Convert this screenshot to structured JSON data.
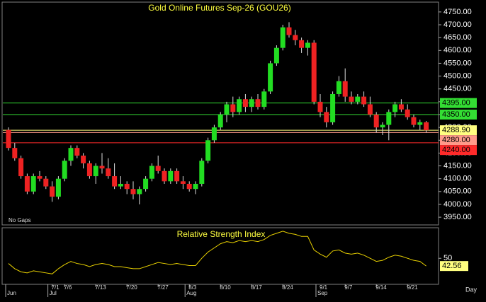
{
  "chart_data": [
    {
      "type": "candlestick",
      "title": "Gold Online Futures Sep-26 (GOU26)",
      "note": "No Gaps",
      "x_axis_label": "Day",
      "categories": [
        null,
        null,
        null,
        null,
        null,
        null,
        null,
        "7/1",
        null,
        "7/6",
        null,
        null,
        null,
        null,
        "7/13",
        null,
        null,
        null,
        null,
        "7/20",
        null,
        null,
        null,
        null,
        "7/27",
        null,
        null,
        null,
        null,
        "8/3",
        null,
        null,
        null,
        null,
        "8/10",
        null,
        null,
        null,
        null,
        "8/17",
        null,
        null,
        null,
        null,
        "8/24",
        null,
        null,
        null,
        null,
        null,
        null,
        null,
        null,
        null,
        "9/7",
        null,
        null,
        null,
        null,
        "9/14",
        null,
        null,
        null,
        null,
        "9/21",
        null,
        null,
        null
      ],
      "months": [
        {
          "label": "Jun",
          "at": 0
        },
        {
          "label": "Jul",
          "at": 7
        },
        {
          "label": "Aug",
          "at": 29
        },
        {
          "label": "Sep",
          "at": 50
        }
      ],
      "extra_x_labels": [
        {
          "label": "9/1",
          "at": 50
        }
      ],
      "open": [
        4290,
        4220,
        4180,
        4110,
        4050,
        4110,
        4100,
        4070,
        4030,
        4100,
        4170,
        4220,
        4190,
        4160,
        4110,
        4150,
        4140,
        4110,
        4070,
        4080,
        4060,
        4040,
        4060,
        4100,
        4150,
        4130,
        4090,
        4130,
        4090,
        4080,
        4060,
        4080,
        4170,
        4250,
        4300,
        4350,
        4390,
        4360,
        4410,
        4380,
        4410,
        4380,
        4440,
        4550,
        4610,
        4690,
        4660,
        4640,
        4610,
        4630,
        4400,
        4360,
        4320,
        4430,
        4480,
        4420,
        4400,
        4420,
        4390,
        4350,
        4300,
        4310,
        4360,
        4390,
        4370,
        4340,
        4310,
        4320
      ],
      "high": [
        4300,
        4240,
        4190,
        4120,
        4120,
        4130,
        4110,
        4090,
        4110,
        4180,
        4230,
        4230,
        4200,
        4170,
        4160,
        4200,
        4180,
        4160,
        4110,
        4090,
        4090,
        4070,
        4110,
        4160,
        4190,
        4140,
        4140,
        4140,
        4110,
        4090,
        4090,
        4180,
        4260,
        4310,
        4360,
        4400,
        4420,
        4420,
        4430,
        4420,
        4430,
        4450,
        4560,
        4620,
        4700,
        4710,
        4680,
        4650,
        4640,
        4640,
        4430,
        4380,
        4440,
        4500,
        4530,
        4440,
        4430,
        4440,
        4420,
        4360,
        4320,
        4370,
        4400,
        4410,
        4390,
        4350,
        4330,
        4325
      ],
      "low": [
        4210,
        4170,
        4100,
        4040,
        4040,
        4090,
        4060,
        4010,
        4020,
        4090,
        4150,
        4180,
        4140,
        4100,
        4080,
        4120,
        4100,
        4060,
        4060,
        4040,
        4020,
        4000,
        4050,
        4090,
        4120,
        4080,
        4080,
        4080,
        4060,
        4050,
        4040,
        4070,
        4160,
        4240,
        4290,
        4320,
        4340,
        4350,
        4360,
        4360,
        4370,
        4370,
        4430,
        4540,
        4600,
        4650,
        4620,
        4590,
        4580,
        4390,
        4340,
        4300,
        4310,
        4420,
        4400,
        4390,
        4390,
        4380,
        4340,
        4280,
        4270,
        4250,
        4340,
        4360,
        4330,
        4300,
        4290,
        4280
      ],
      "close": [
        4220,
        4180,
        4110,
        4050,
        4110,
        4100,
        4070,
        4030,
        4100,
        4170,
        4220,
        4190,
        4160,
        4110,
        4150,
        4140,
        4110,
        4070,
        4080,
        4060,
        4040,
        4060,
        4100,
        4150,
        4130,
        4090,
        4130,
        4090,
        4080,
        4060,
        4080,
        4170,
        4250,
        4300,
        4350,
        4390,
        4360,
        4410,
        4380,
        4410,
        4380,
        4440,
        4550,
        4610,
        4690,
        4660,
        4640,
        4610,
        4630,
        4400,
        4360,
        4320,
        4430,
        4480,
        4420,
        4400,
        4420,
        4390,
        4350,
        4300,
        4310,
        4360,
        4390,
        4370,
        4340,
        4310,
        4320,
        4288.9
      ],
      "up_color": "#22dd22",
      "down_color": "#ee2222",
      "ylim": [
        3920,
        4780
      ],
      "yticks": [
        {
          "value": 3950,
          "label": "3950.00"
        },
        {
          "value": 4000,
          "label": "4000.00"
        },
        {
          "value": 4050,
          "label": "4050.00"
        },
        {
          "value": 4100,
          "label": "4100.00"
        },
        {
          "value": 4150,
          "label": "4150.00"
        },
        {
          "value": 4200,
          "label": "4200.00"
        },
        {
          "value": 4250,
          "label": "4250.00"
        },
        {
          "value": 4300,
          "label": "4300.00"
        },
        {
          "value": 4350,
          "label": "4350.00"
        },
        {
          "value": 4400,
          "label": "4400.00"
        },
        {
          "value": 4450,
          "label": "4450.00"
        },
        {
          "value": 4500,
          "label": "4500.00"
        },
        {
          "value": 4550,
          "label": "4550.00"
        },
        {
          "value": 4600,
          "label": "4600.00"
        },
        {
          "value": 4650,
          "label": "4650.00"
        },
        {
          "value": 4700,
          "label": "4700.00"
        },
        {
          "value": 4750,
          "label": "4750.00"
        }
      ],
      "levels": [
        {
          "value": 4395,
          "label": "4395.00",
          "color": "#33dd33"
        },
        {
          "value": 4350,
          "label": "4350.00",
          "color": "#33dd33"
        },
        {
          "value": 4288.9,
          "label": "4288.90",
          "color": "#ffff80"
        },
        {
          "value": 4280,
          "label": "4280.00",
          "color": "#ff9a8a"
        },
        {
          "value": 4240,
          "label": "4240.00",
          "color": "#ff2a2a"
        }
      ]
    },
    {
      "type": "line",
      "title": "Relative Strength Index",
      "color": "#e8d000",
      "values": [
        45,
        40,
        37,
        36,
        38,
        37,
        36,
        35,
        40,
        44,
        47,
        45,
        44,
        42,
        44,
        45,
        44,
        42,
        42,
        41,
        40,
        40,
        42,
        44,
        46,
        45,
        44,
        45,
        44,
        43,
        43,
        50,
        56,
        60,
        64,
        66,
        65,
        67,
        66,
        67,
        66,
        68,
        72,
        74,
        76,
        74,
        73,
        71,
        71,
        58,
        54,
        51,
        57,
        58,
        55,
        54,
        55,
        53,
        50,
        47,
        48,
        51,
        53,
        52,
        50,
        48,
        47,
        42.56
      ],
      "ylim": [
        25,
        78
      ],
      "yticks": [
        50
      ],
      "last_label": {
        "value": 42.56,
        "label": "42.56",
        "color": "#ffff80"
      }
    }
  ]
}
